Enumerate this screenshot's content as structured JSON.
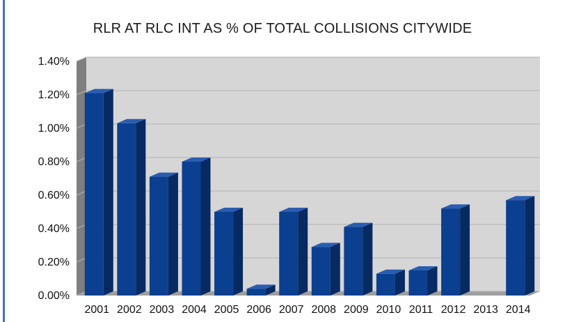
{
  "chart_data": {
    "type": "bar",
    "title": "RLR AT RLC INT AS % OF TOTAL COLLISIONS CITYWIDE",
    "xlabel": "",
    "ylabel": "",
    "categories": [
      "2001",
      "2002",
      "2003",
      "2004",
      "2005",
      "2006",
      "2007",
      "2008",
      "2009",
      "2010",
      "2011",
      "2012",
      "2013",
      "2014"
    ],
    "values": [
      1.21,
      1.03,
      0.71,
      0.8,
      0.5,
      0.04,
      0.5,
      0.29,
      0.41,
      0.13,
      0.15,
      0.52,
      0.0,
      0.57
    ],
    "value_unit": "%",
    "ylim": [
      0,
      1.4
    ],
    "yticks": [
      "0.00%",
      "0.20%",
      "0.40%",
      "0.60%",
      "0.80%",
      "1.00%",
      "1.20%",
      "1.40%"
    ],
    "grid": true,
    "legend": "none",
    "colors": {
      "bar_front": "#0b3f8f",
      "bar_side": "#072a63",
      "bar_top": "#2a5db0",
      "plot_back": "#d6d6d6",
      "floor": "#9e9e9e",
      "gridline": "#b3b3b3"
    }
  }
}
